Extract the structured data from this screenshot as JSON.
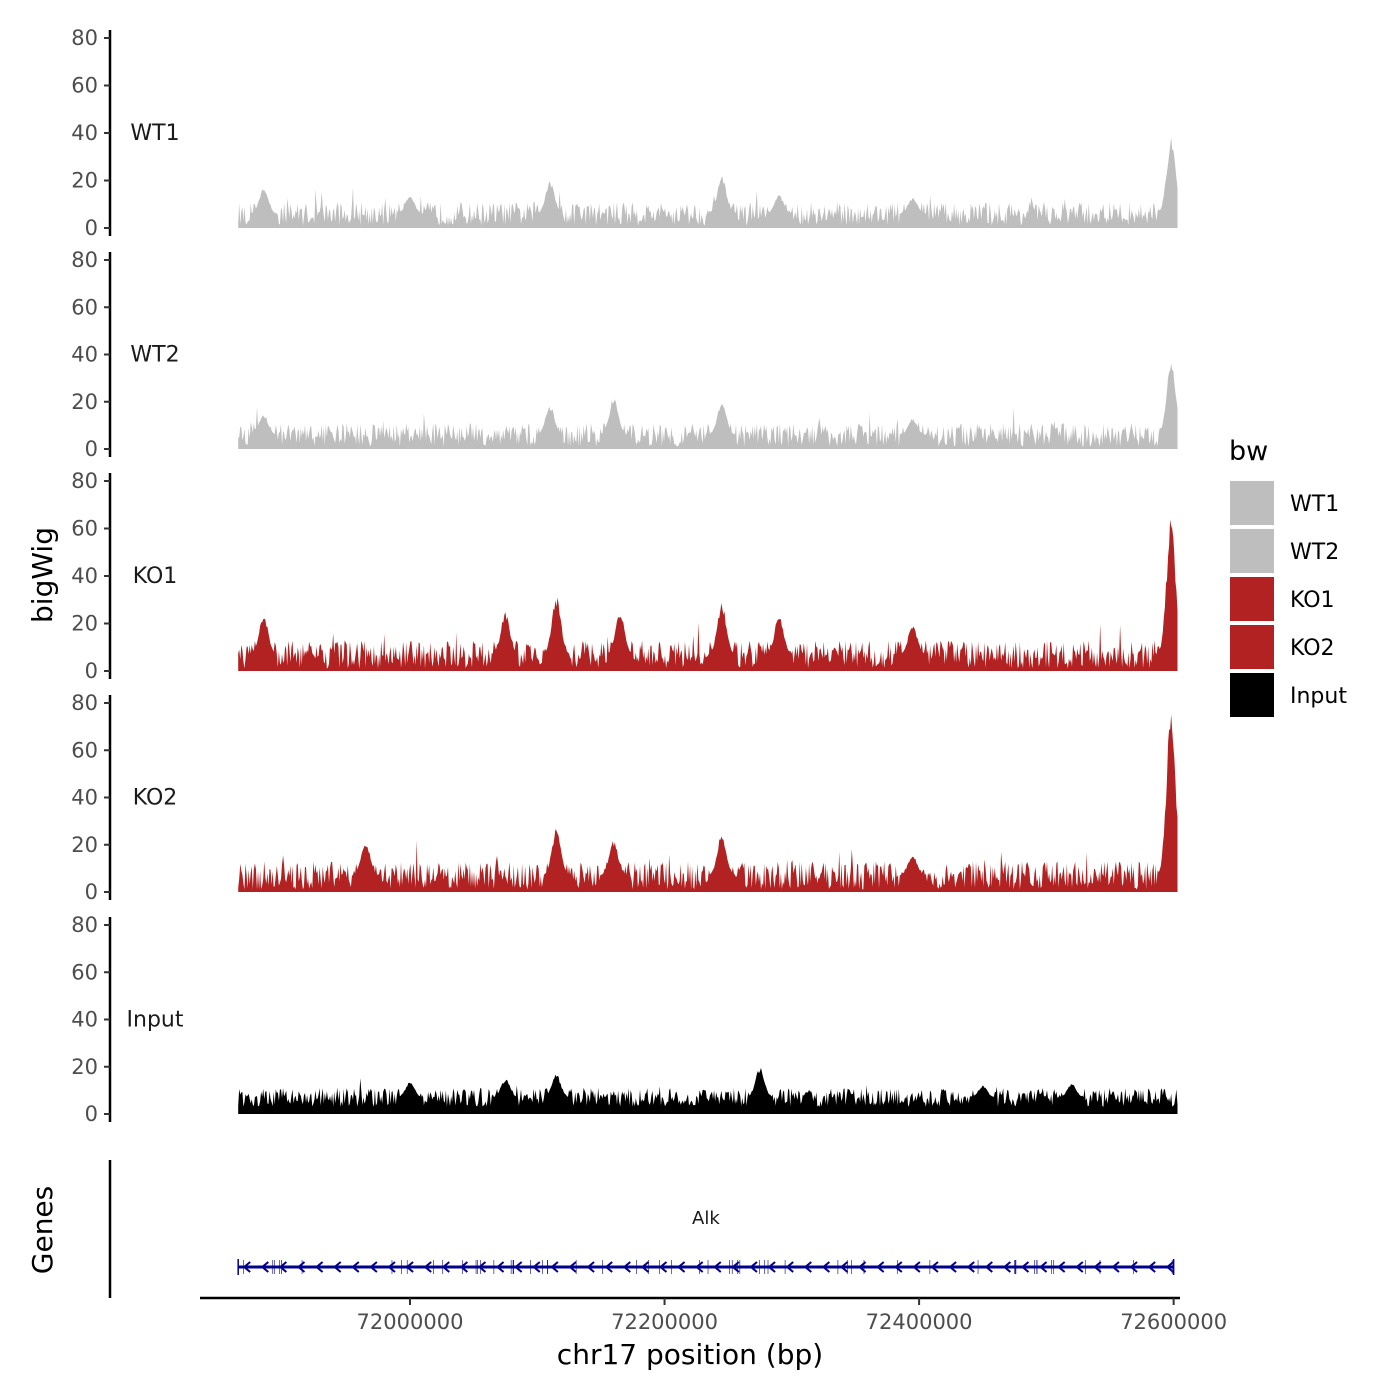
{
  "chart_data": {
    "type": "area",
    "title": "",
    "ylabel": "bigWig",
    "xlabel": "chr17 position (bp)",
    "xlim": [
      71835000,
      72605000
    ],
    "data_range": [
      71865000,
      72603000
    ],
    "ylim": [
      0,
      80
    ],
    "y_ticks": [
      0,
      20,
      40,
      60,
      80
    ],
    "x_ticks": [
      72000000,
      72200000,
      72400000,
      72600000
    ],
    "x_tick_labels": [
      "72000000",
      "72200000",
      "72400000",
      "72600000"
    ],
    "legend": {
      "title": "bw",
      "position": "right",
      "entries": [
        {
          "label": "WT1",
          "color": "#bebebe"
        },
        {
          "label": "WT2",
          "color": "#bebebe"
        },
        {
          "label": "KO1",
          "color": "#b22222"
        },
        {
          "label": "KO2",
          "color": "#b22222"
        },
        {
          "label": "Input",
          "color": "#000000"
        }
      ]
    },
    "series": [
      {
        "name": "WT1",
        "color": "#bebebe",
        "base": 6,
        "noise": 5,
        "peaks": [
          [
            71885000,
            17
          ],
          [
            72000000,
            14
          ],
          [
            72110000,
            20
          ],
          [
            72245000,
            22
          ],
          [
            72290000,
            14
          ],
          [
            72395000,
            13
          ],
          [
            72598000,
            39
          ]
        ]
      },
      {
        "name": "WT2",
        "color": "#bebebe",
        "base": 6,
        "noise": 5,
        "peaks": [
          [
            71885000,
            15
          ],
          [
            72110000,
            19
          ],
          [
            72160000,
            22
          ],
          [
            72245000,
            20
          ],
          [
            72395000,
            13
          ],
          [
            72598000,
            38
          ]
        ]
      },
      {
        "name": "KO1",
        "color": "#b22222",
        "base": 7,
        "noise": 6,
        "peaks": [
          [
            71885000,
            24
          ],
          [
            72075000,
            25
          ],
          [
            72115000,
            32
          ],
          [
            72165000,
            25
          ],
          [
            72245000,
            29
          ],
          [
            72290000,
            24
          ],
          [
            72395000,
            20
          ],
          [
            72598000,
            66
          ]
        ]
      },
      {
        "name": "KO2",
        "color": "#b22222",
        "base": 7,
        "noise": 6,
        "peaks": [
          [
            71965000,
            22
          ],
          [
            72115000,
            27
          ],
          [
            72160000,
            22
          ],
          [
            72245000,
            25
          ],
          [
            72395000,
            16
          ],
          [
            72598000,
            80
          ]
        ]
      },
      {
        "name": "Input",
        "color": "#000000",
        "base": 7,
        "noise": 4,
        "peaks": [
          [
            72000000,
            14
          ],
          [
            72075000,
            15
          ],
          [
            72115000,
            17
          ],
          [
            72275000,
            20
          ],
          [
            72450000,
            12
          ],
          [
            72520000,
            13
          ]
        ]
      }
    ],
    "genes": {
      "panel_label": "Genes",
      "items": [
        {
          "name": "Alk",
          "start": 71865000,
          "end": 72600000,
          "strand": "-",
          "color": "#00008b"
        }
      ]
    }
  }
}
